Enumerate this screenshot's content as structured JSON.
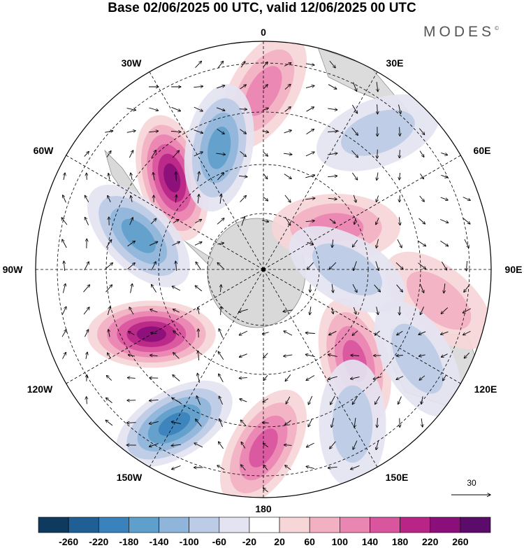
{
  "title": "Base 02/06/2025 00 UTC, valid 12/06/2025 00 UTC",
  "brand": "MODES",
  "brand_mark": "©",
  "longitude_labels": {
    "lon_0": "0",
    "lon_30e": "30E",
    "lon_60e": "60E",
    "lon_90e": "90E",
    "lon_120e": "120E",
    "lon_150e": "150E",
    "lon_180": "180",
    "lon_150w": "150W",
    "lon_120w": "120W",
    "lon_90w": "90W",
    "lon_60w": "60W",
    "lon_30w": "30W"
  },
  "reference_vector_label": "30",
  "colorbar": {
    "ticks": [
      "-260",
      "-220",
      "-180",
      "-140",
      "-100",
      "-60",
      "-20",
      "20",
      "60",
      "100",
      "140",
      "180",
      "220",
      "260"
    ],
    "colors": [
      "#0f3a5f",
      "#1f5f94",
      "#3a82bb",
      "#5f9fcc",
      "#8fb6da",
      "#bccbe6",
      "#e4e3f1",
      "#ffffff",
      "#f7d6d8",
      "#f2b1c3",
      "#ea86b2",
      "#d9559e",
      "#b82587",
      "#8a0f7a",
      "#5b0c6b"
    ]
  },
  "chart_data": {
    "type": "polar_stereographic_map",
    "hemisphere": "southern",
    "field": "shaded anomaly with wind vectors",
    "colorbar_range": [
      -260,
      260
    ],
    "colorbar_interval": 40,
    "grid": true,
    "anomaly_centers": [
      {
        "lon": -45,
        "lat_ring": "mid",
        "value": 250
      },
      {
        "lon": -120,
        "lat_ring": "mid",
        "value": 230
      },
      {
        "lon": 180,
        "lat_ring": "outer",
        "value": 160
      },
      {
        "lon": 135,
        "lat_ring": "mid",
        "value": 140
      },
      {
        "lon": 60,
        "lat_ring": "inner",
        "value": 120
      },
      {
        "lon": 0,
        "lat_ring": "outer",
        "value": 100
      },
      {
        "lon": 100,
        "lat_ring": "outer",
        "value": 70
      },
      {
        "lon": -75,
        "lat_ring": "mid",
        "value": -170
      },
      {
        "lon": -150,
        "lat_ring": "outer",
        "value": -180
      },
      {
        "lon": -20,
        "lat_ring": "mid",
        "value": -150
      },
      {
        "lon": 40,
        "lat_ring": "outer",
        "value": -80
      },
      {
        "lon": 90,
        "lat_ring": "inner",
        "value": -70
      },
      {
        "lon": 120,
        "lat_ring": "outer",
        "value": -90
      },
      {
        "lon": 150,
        "lat_ring": "outer",
        "value": -70
      }
    ]
  }
}
